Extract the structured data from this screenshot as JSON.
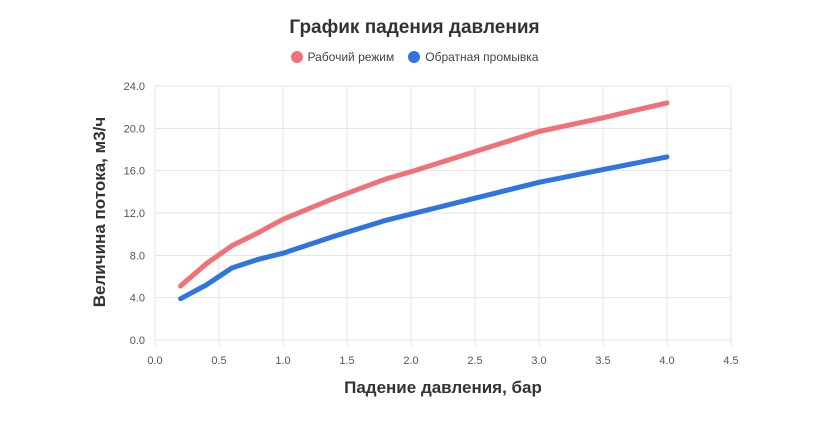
{
  "chart_data": {
    "type": "line",
    "title": "График падения давления",
    "xlabel": "Падение давления, бар",
    "ylabel": "Величина потока, м3/ч",
    "xlim": [
      0,
      4.5
    ],
    "ylim": [
      0,
      24
    ],
    "xticks": [
      "0.0",
      "0.5",
      "1.0",
      "1.5",
      "2.0",
      "2.5",
      "3.0",
      "3.5",
      "4.0",
      "4.5"
    ],
    "yticks": [
      "0.0",
      "4.0",
      "8.0",
      "12.0",
      "16.0",
      "20.0",
      "24.0"
    ],
    "grid": true,
    "legend_position": "top-center",
    "series": [
      {
        "name": "Рабочий режим",
        "color": "#f07178",
        "x": [
          0.2,
          0.4,
          0.6,
          0.8,
          1.0,
          1.4,
          1.8,
          2.0,
          2.5,
          3.0,
          3.5,
          4.0
        ],
        "y": [
          5.1,
          7.2,
          8.9,
          10.1,
          11.4,
          13.4,
          15.2,
          15.9,
          17.8,
          19.7,
          21.0,
          22.4
        ]
      },
      {
        "name": "Обратная промывка",
        "color": "#2f74e0",
        "x": [
          0.2,
          0.4,
          0.6,
          0.8,
          1.0,
          1.4,
          1.8,
          2.0,
          2.5,
          3.0,
          3.5,
          4.0
        ],
        "y": [
          3.9,
          5.2,
          6.8,
          7.6,
          8.2,
          9.8,
          11.3,
          11.9,
          13.4,
          14.9,
          16.1,
          17.3
        ]
      }
    ]
  }
}
